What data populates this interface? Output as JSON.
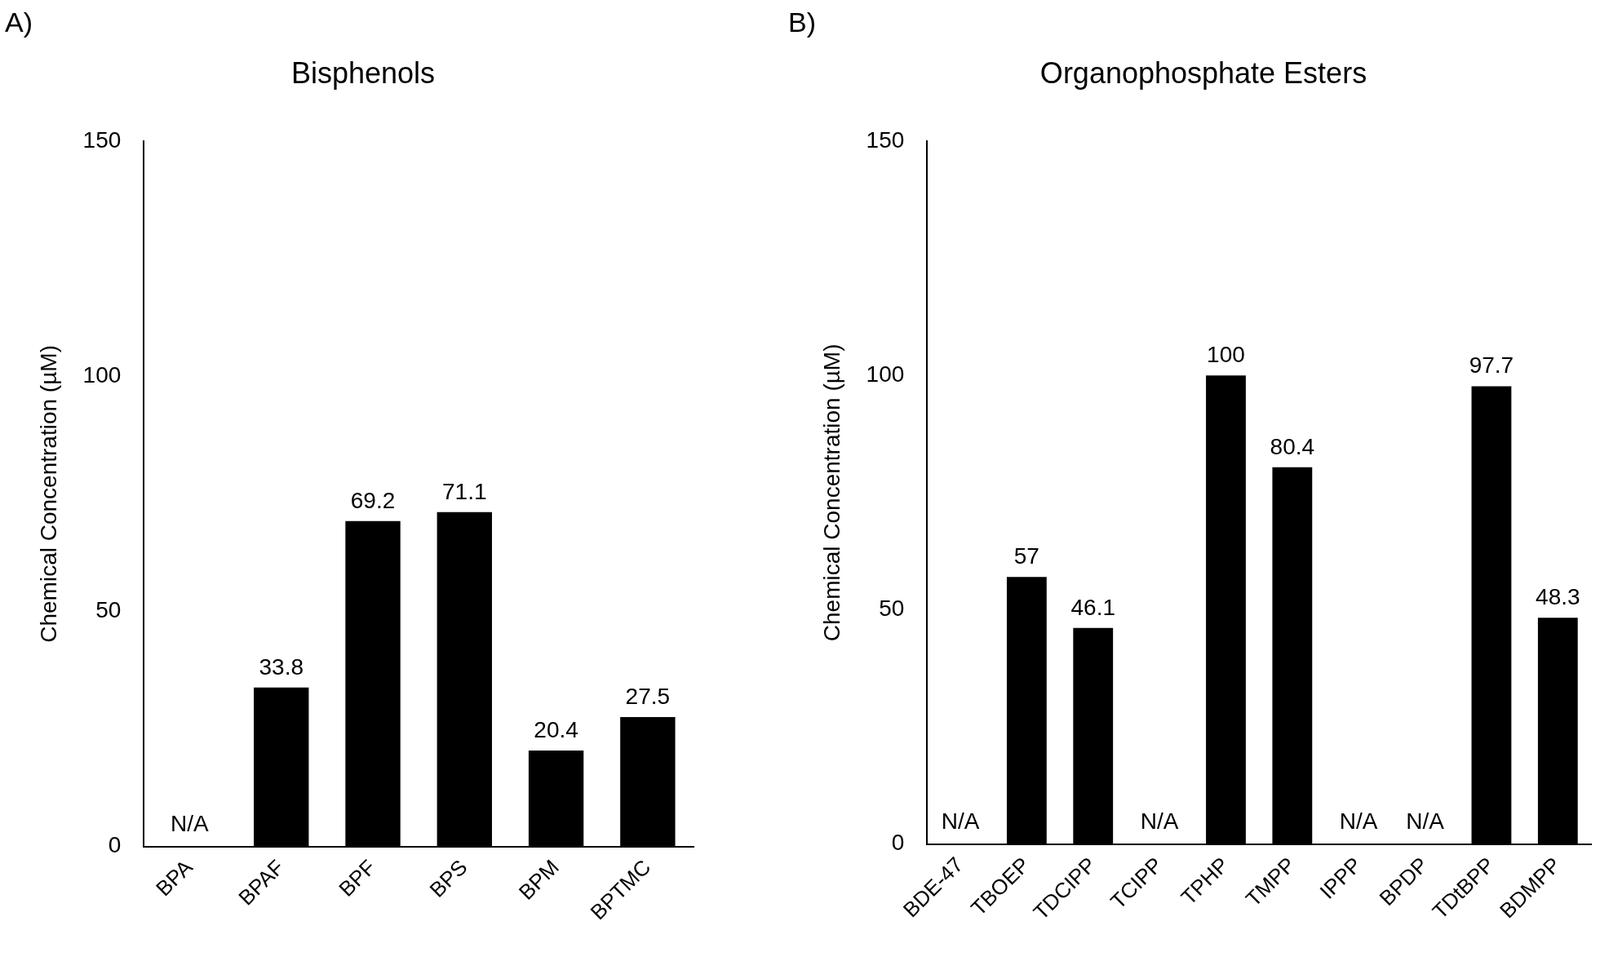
{
  "chart_data": [
    {
      "panel": "A)",
      "type": "bar",
      "title": "Bisphenols",
      "y_label": "Chemical Concentration (µM)",
      "categories": [
        "BPA",
        "BPAF",
        "BPF",
        "BPS",
        "BPM",
        "BPTMC"
      ],
      "values": [
        null,
        33.8,
        69.2,
        71.1,
        20.4,
        27.5
      ],
      "value_labels": [
        "N/A",
        "33.8",
        "69.2",
        "71.1",
        "20.4",
        "27.5"
      ],
      "color": "#000000",
      "ylim": [
        0,
        150
      ],
      "yticks": [
        0,
        50,
        100,
        150
      ],
      "grid": false,
      "data_labels": true
    },
    {
      "panel": "B)",
      "type": "bar",
      "title": "Organophosphate Esters",
      "y_label": "Chemical Concentration (µM)",
      "categories": [
        "BDE-47",
        "TBOEP",
        "TDCIPP",
        "TCIPP",
        "TPHP",
        "TMPP",
        "IPPP",
        "BPDP",
        "TDtBPP",
        "BDMPP"
      ],
      "values": [
        null,
        57,
        46.1,
        null,
        100,
        80.4,
        null,
        null,
        97.7,
        48.3
      ],
      "value_labels": [
        "N/A",
        "57",
        "46.1",
        "N/A",
        "100",
        "80.4",
        "N/A",
        "N/A",
        "97.7",
        "48.3"
      ],
      "color": "#000000",
      "ylim": [
        0,
        150
      ],
      "yticks": [
        0,
        50,
        100,
        150
      ],
      "grid": false,
      "data_labels": true
    }
  ]
}
